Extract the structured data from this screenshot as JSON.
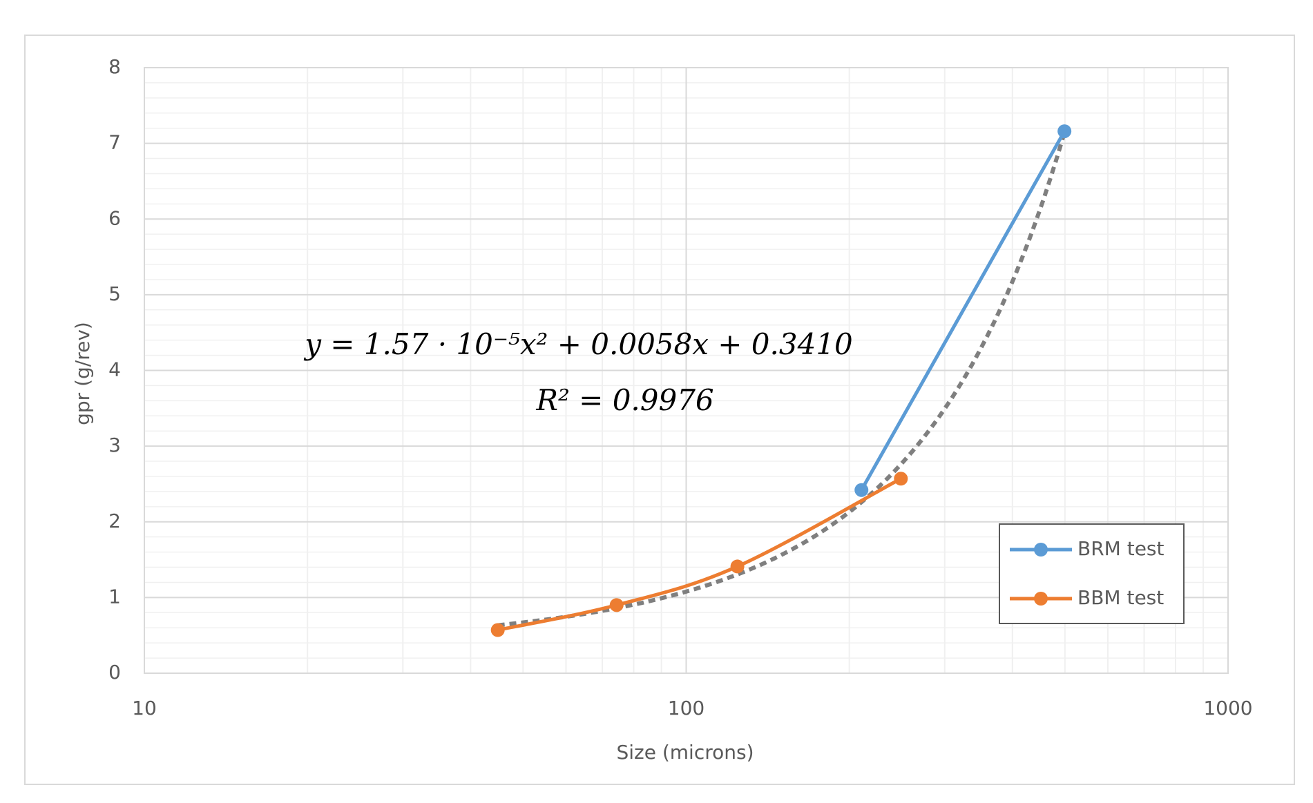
{
  "chart_data": {
    "type": "line",
    "x_label": "Size (microns)",
    "y_label": "gpr (g/rev)",
    "xscale": "log",
    "xlim": [
      10,
      1000
    ],
    "xticks": [
      10,
      100,
      1000
    ],
    "ylim": [
      0,
      8
    ],
    "yticks": [
      0,
      1,
      2,
      3,
      4,
      5,
      6,
      7,
      8
    ],
    "grid": true,
    "legend": "lower right",
    "series": [
      {
        "name": "BRM test",
        "color": "#5b9bd5",
        "x": [
          210.6,
          499
        ],
        "values": [
          2.42,
          7.16
        ]
      },
      {
        "name": "BBM test",
        "color": "#ed7d31",
        "x": [
          44.9,
          74.4,
          124.3,
          249
        ],
        "values": [
          0.57,
          0.9,
          1.41,
          2.57
        ]
      }
    ],
    "trendline": {
      "color": "#7f7f7f",
      "coefficients": [
        1.57e-05,
        0.0058,
        0.341
      ],
      "x_range": [
        44.9,
        499
      ]
    },
    "annotations": [
      "y = 1.57 · 10⁻⁵x² + 0.0058x + 0.3410",
      "R² = 0.9976"
    ]
  }
}
